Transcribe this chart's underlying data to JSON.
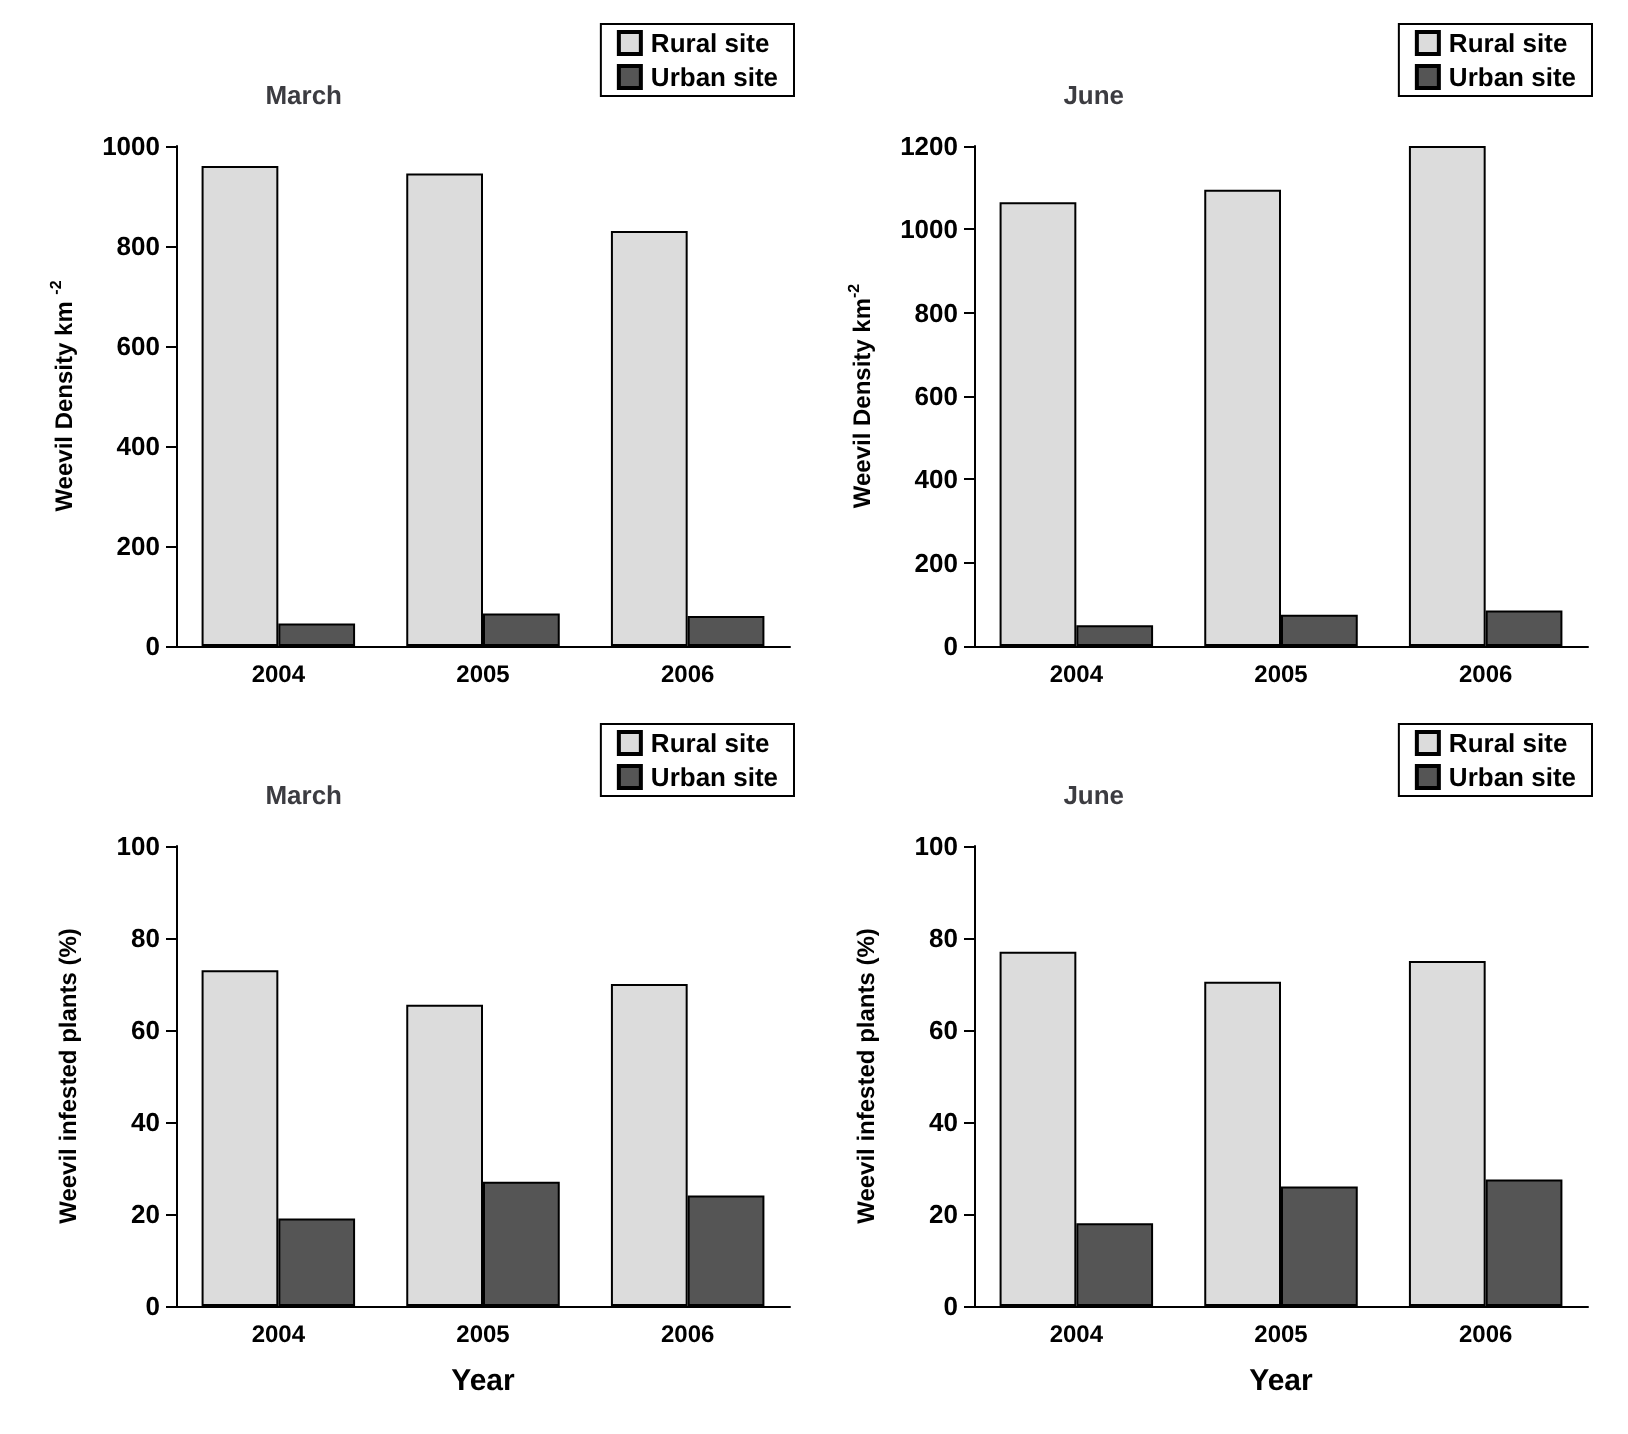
{
  "chart_data": [
    {
      "type": "bar",
      "title": "March",
      "ylabel": "Weevil Density km $^{-2}$",
      "categories": [
        "2004",
        "2005",
        "2006"
      ],
      "series": [
        {
          "name": "Rural site",
          "color": "#dcdcdc",
          "values": [
            960,
            945,
            830
          ]
        },
        {
          "name": "Urban site",
          "color": "#555555",
          "values": [
            45,
            65,
            60
          ]
        }
      ],
      "ylim": [
        0,
        1000
      ],
      "yticks": [
        0,
        200,
        400,
        600,
        800,
        1000
      ],
      "grid": false,
      "legend": "top right"
    },
    {
      "type": "bar",
      "title": "June",
      "ylabel": "Weevil Density km$^{-2}$",
      "categories": [
        "2004",
        "2005",
        "2006"
      ],
      "series": [
        {
          "name": "Rural site",
          "color": "#dcdcdc",
          "values": [
            1065,
            1095,
            1200
          ]
        },
        {
          "name": "Urban site",
          "color": "#555555",
          "values": [
            50,
            75,
            85
          ]
        }
      ],
      "ylim": [
        0,
        1200
      ],
      "yticks": [
        0,
        200,
        400,
        600,
        800,
        1000,
        1200
      ],
      "grid": false,
      "legend": "top right"
    },
    {
      "type": "bar",
      "title": "March",
      "xlabel": "Year",
      "ylabel": "Weevil infested plants (%)",
      "categories": [
        "2004",
        "2005",
        "2006"
      ],
      "series": [
        {
          "name": "Rural site",
          "color": "#dcdcdc",
          "values": [
            73,
            65.5,
            70
          ]
        },
        {
          "name": "Urban site",
          "color": "#555555",
          "values": [
            19,
            27,
            24
          ]
        }
      ],
      "ylim": [
        0,
        100
      ],
      "yticks": [
        0,
        20,
        40,
        60,
        80,
        100
      ],
      "grid": false,
      "legend": "top right"
    },
    {
      "type": "bar",
      "title": "June",
      "xlabel": "Year",
      "ylabel": "Weevil infested plants (%)",
      "categories": [
        "2004",
        "2005",
        "2006"
      ],
      "series": [
        {
          "name": "Rural site",
          "color": "#dcdcdc",
          "values": [
            77,
            70.5,
            75
          ]
        },
        {
          "name": "Urban site",
          "color": "#555555",
          "values": [
            18,
            26,
            27.5
          ]
        }
      ],
      "ylim": [
        0,
        100
      ],
      "yticks": [
        0,
        20,
        40,
        60,
        80,
        100
      ],
      "grid": false,
      "legend": "top right"
    }
  ]
}
